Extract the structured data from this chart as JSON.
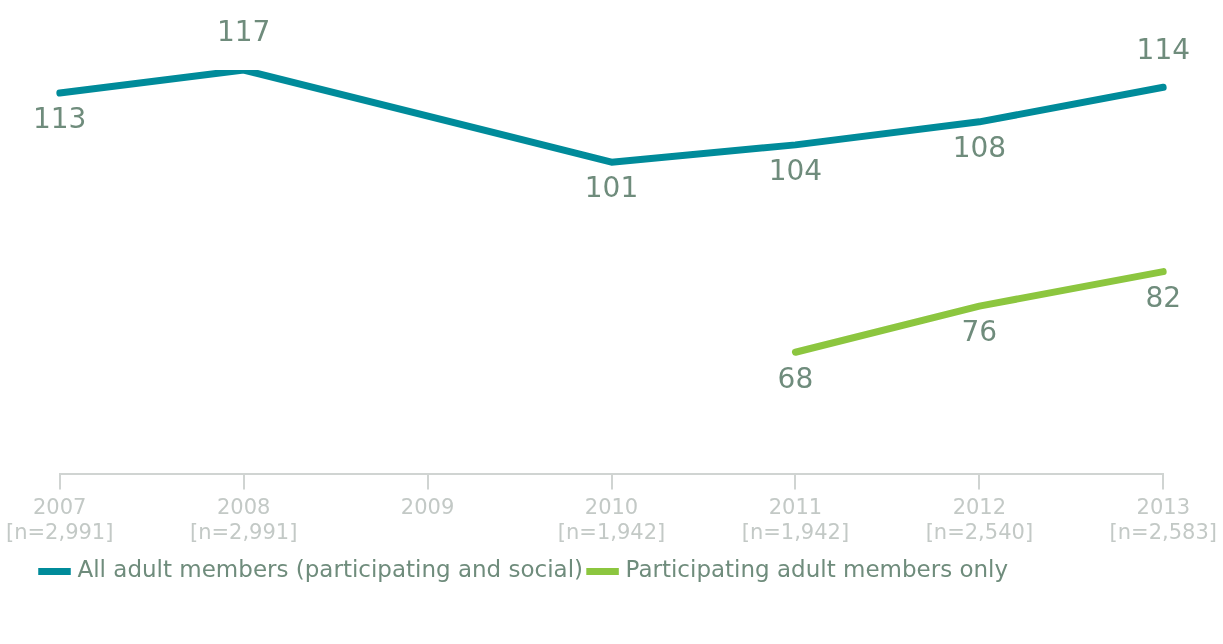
{
  "chart_data": {
    "type": "line",
    "categories": [
      "2007\n[n=2,991]",
      "2008\n[n=2,991]",
      "2009",
      "2010\n[n=1,942]",
      "2011\n[n=1,942]",
      "2012\n[n=2,540]",
      "2013\n[n=2,583]"
    ],
    "series": [
      {
        "name": "All adult members (participating and social)",
        "color": "#008b9a",
        "values": [
          113,
          117,
          null,
          101,
          104,
          108,
          114
        ]
      },
      {
        "name": "Participating adult members only",
        "color": "#8cc63f",
        "values": [
          null,
          null,
          null,
          null,
          68,
          76,
          82
        ]
      }
    ],
    "data_labels": true,
    "legend": "bottom left",
    "marker": "none",
    "line_style": "solid",
    "grid": false
  }
}
